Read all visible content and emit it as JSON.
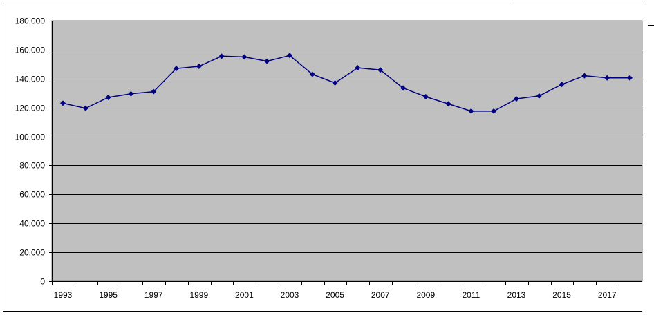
{
  "chart_data": {
    "type": "line",
    "title": "",
    "xlabel": "",
    "ylabel": "",
    "x": [
      1993,
      1994,
      1995,
      1996,
      1997,
      1998,
      1999,
      2000,
      2001,
      2002,
      2003,
      2004,
      2005,
      2006,
      2007,
      2008,
      2009,
      2010,
      2011,
      2012,
      2013,
      2014,
      2015,
      2016,
      2017,
      2018
    ],
    "series": [
      {
        "values": [
          123000,
          119500,
          127000,
          129500,
          131000,
          147000,
          148500,
          155500,
          155000,
          152000,
          156000,
          143000,
          137000,
          147500,
          146000,
          133500,
          127500,
          122500,
          117500,
          117500,
          126000,
          128000,
          136000,
          142000,
          140500,
          140500
        ]
      }
    ],
    "ylim": [
      0,
      180000
    ],
    "y_ticks": [
      "0",
      "20.000",
      "40.000",
      "60.000",
      "80.000",
      "100.000",
      "120.000",
      "140.000",
      "160.000",
      "180.000"
    ],
    "x_tick_labels": [
      "1993",
      "1995",
      "1997",
      "1999",
      "2001",
      "2003",
      "2005",
      "2007",
      "2009",
      "2011",
      "2013",
      "2015",
      "2017"
    ],
    "grid": true,
    "legend": "none",
    "colors": {
      "plot_background": "#c0c0c0",
      "line": "#000080",
      "gridline": "#000000"
    }
  }
}
